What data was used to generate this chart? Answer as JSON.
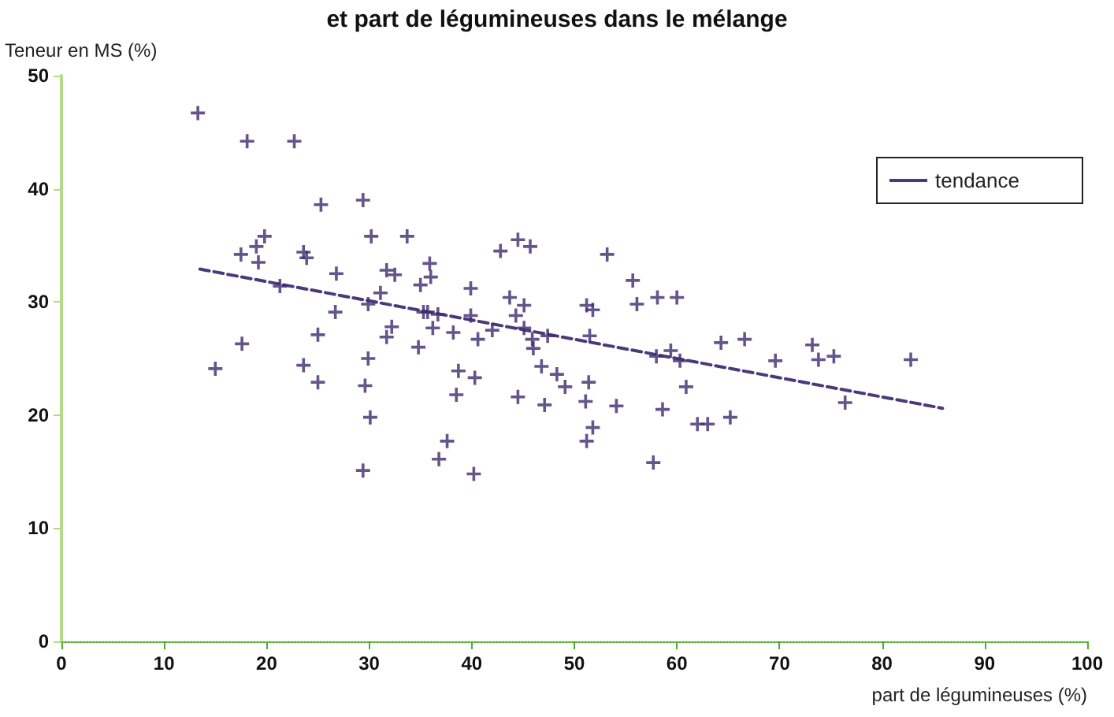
{
  "chart_data": {
    "type": "scatter",
    "title": "et part de légumineuses dans le mélange",
    "xlabel": "part de légumineuses (%)",
    "ylabel": "Teneur en MS (%)",
    "xlim": [
      0,
      100
    ],
    "xticks": [
      0,
      10,
      20,
      30,
      40,
      50,
      60,
      70,
      80,
      90,
      100
    ],
    "ylim": [
      0,
      50
    ],
    "yticks": [
      0,
      10,
      20,
      30,
      40,
      50
    ],
    "grid": false,
    "legend": "top right",
    "series": [
      {
        "color": "#3f2a6e",
        "marker": "cross",
        "x": [
          13.3,
          18.1,
          22.7,
          25.3,
          29.4,
          19.8,
          19.0,
          17.5,
          19.2,
          23.6,
          23.9,
          30.2,
          33.7,
          26.8,
          31.7,
          32.5,
          35.0,
          21.3,
          31.1,
          29.9,
          26.7,
          35.3,
          32.2,
          31.7,
          34.8,
          25.0,
          17.6,
          15.0,
          23.6,
          25.0,
          29.9,
          29.6,
          30.1,
          29.4,
          35.9,
          36.0,
          35.7,
          36.7,
          39.9,
          42.8,
          44.5,
          45.7,
          43.7,
          45.1,
          44.3,
          39.9,
          36.2,
          38.2,
          40.6,
          42.0,
          45.1,
          45.9,
          46.0,
          47.4,
          46.8,
          48.3,
          49.1,
          51.4,
          51.1,
          44.5,
          47.1,
          38.7,
          40.3,
          38.5,
          37.6,
          36.8,
          40.2,
          53.2,
          55.7,
          56.1,
          58.1,
          60.0,
          51.2,
          51.8,
          51.5,
          58.0,
          59.4,
          60.3,
          60.9,
          64.3,
          66.6,
          58.6,
          54.1,
          51.8,
          51.2,
          57.7,
          62.0,
          63.0,
          65.2,
          69.6,
          73.2,
          73.8,
          75.3,
          82.8,
          76.4
        ],
        "values": [
          46.7,
          44.2,
          44.2,
          38.6,
          39.0,
          35.8,
          34.9,
          34.2,
          33.5,
          34.4,
          33.9,
          35.8,
          35.8,
          32.5,
          32.8,
          32.4,
          31.5,
          31.4,
          30.8,
          29.8,
          29.1,
          29.1,
          27.8,
          26.9,
          26.0,
          27.1,
          26.3,
          24.1,
          24.4,
          22.9,
          25.0,
          22.6,
          19.8,
          15.1,
          33.4,
          32.2,
          29.1,
          28.9,
          31.2,
          34.5,
          35.5,
          34.9,
          30.4,
          29.7,
          28.8,
          28.8,
          27.7,
          27.3,
          26.7,
          27.5,
          27.7,
          26.7,
          25.9,
          27.0,
          24.3,
          23.6,
          22.5,
          22.9,
          21.2,
          21.6,
          20.9,
          23.9,
          23.3,
          21.8,
          17.7,
          16.1,
          14.8,
          34.2,
          31.9,
          29.8,
          30.4,
          30.4,
          29.7,
          29.3,
          27.0,
          25.2,
          25.7,
          24.8,
          22.5,
          26.4,
          26.7,
          20.5,
          20.8,
          18.9,
          17.7,
          15.8,
          19.2,
          19.2,
          19.8,
          24.8,
          26.2,
          24.9,
          25.2,
          24.9,
          21.1
        ]
      },
      {
        "type": "line",
        "name": "tendance",
        "color": "#4b3a7a",
        "line_style": "dashed",
        "marker": "none",
        "x": [
          13.5,
          85.9
        ],
        "values": [
          32.9,
          20.6
        ]
      }
    ]
  }
}
